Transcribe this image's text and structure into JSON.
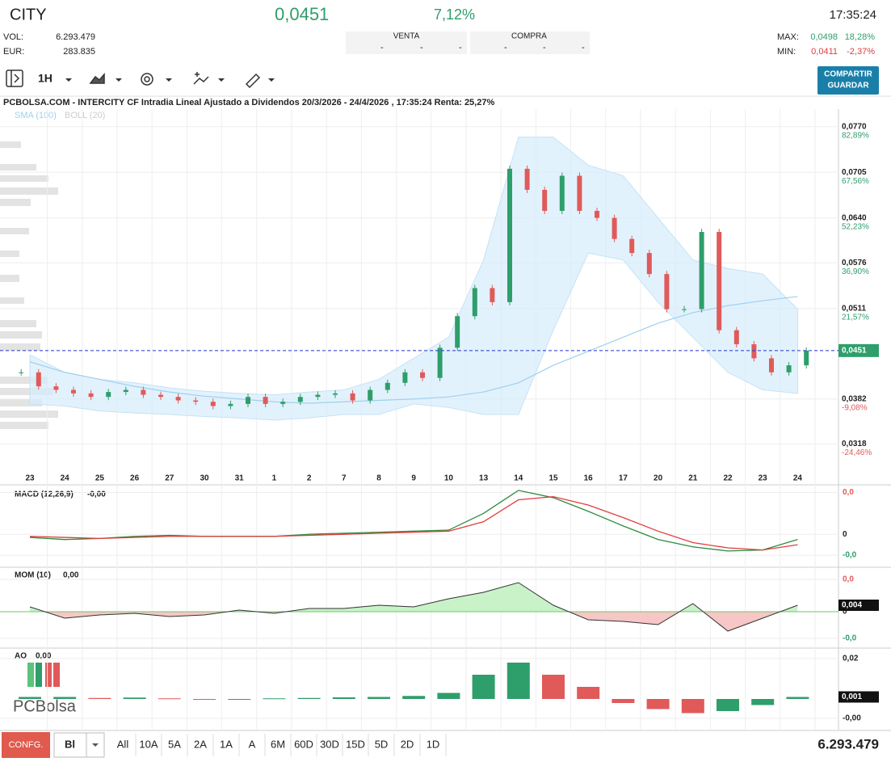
{
  "header": {
    "ticker": "CITY",
    "price": "0,0451",
    "change": "7,12%",
    "time": "17:35:24",
    "vol_label": "VOL:",
    "vol": "6.293.479",
    "eur_label": "EUR:",
    "eur": "283.835",
    "venta": "VENTA",
    "compra": "COMPRA",
    "dash": "-",
    "max_label": "MAX:",
    "max": "0,0498",
    "max_pct": "18,28%",
    "min_label": "MIN:",
    "min": "0,0411",
    "min_pct": "-2,37%"
  },
  "toolbar": {
    "interval": "1H",
    "share": "COMPARTIR",
    "save": "GUARDAR"
  },
  "price_chart": {
    "type": "candlestick",
    "title": "PCBOLSA.COM - INTERCITY CF Intradia Lineal Ajustado a Dividendos 20/3/2026 - 24/4/2026 , 17:35:24 Renta: 25,27%",
    "legend": [
      "SMA (100)",
      "BOLL (20)"
    ],
    "dates": [
      "23",
      "24",
      "25",
      "26",
      "27",
      "30",
      "31",
      "1",
      "2",
      "7",
      "8",
      "9",
      "10",
      "13",
      "14",
      "15",
      "16",
      "17",
      "20",
      "21",
      "22",
      "23",
      "24"
    ],
    "close": [
      0.042,
      0.04,
      0.0395,
      0.039,
      0.0385,
      0.0392,
      0.0395,
      0.0388,
      0.0385,
      0.038,
      0.0378,
      0.0372,
      0.0375,
      0.0385,
      0.0375,
      0.0378,
      0.0385,
      0.0388,
      0.039,
      0.038,
      0.0395,
      0.0405,
      0.042,
      0.0412,
      0.0455,
      0.05,
      0.054,
      0.052,
      0.071,
      0.068,
      0.065,
      0.07,
      0.065,
      0.064,
      0.061,
      0.059,
      0.056,
      0.051,
      0.051,
      0.062,
      0.048,
      0.046,
      0.044,
      0.042,
      0.043,
      0.0451
    ],
    "boll_upper": [
      0.0445,
      0.042,
      0.041,
      0.0405,
      0.0398,
      0.0393,
      0.039,
      0.0388,
      0.0392,
      0.0395,
      0.041,
      0.044,
      0.047,
      0.058,
      0.0755,
      0.0755,
      0.0715,
      0.07,
      0.064,
      0.058,
      0.0568,
      0.056,
      0.051
    ],
    "boll_lower": [
      0.0375,
      0.0372,
      0.0365,
      0.0362,
      0.036,
      0.0357,
      0.0355,
      0.0352,
      0.0355,
      0.036,
      0.036,
      0.0375,
      0.037,
      0.036,
      0.036,
      0.048,
      0.059,
      0.058,
      0.052,
      0.047,
      0.042,
      0.0395,
      0.039
    ],
    "sma": [
      0.0435,
      0.042,
      0.041,
      0.04,
      0.0392,
      0.0386,
      0.0382,
      0.0378,
      0.0376,
      0.0378,
      0.038,
      0.0382,
      0.0385,
      0.0392,
      0.0405,
      0.043,
      0.045,
      0.047,
      0.049,
      0.0505,
      0.0515,
      0.0522,
      0.0528
    ],
    "ylim": [
      0.0277,
      0.0795
    ],
    "yticks": [
      {
        "value": 0.077,
        "label": "0,0770",
        "pct": "82,89%"
      },
      {
        "value": 0.0705,
        "label": "0,0705",
        "pct": "67,56%"
      },
      {
        "value": 0.064,
        "label": "0,0640",
        "pct": "52,23%"
      },
      {
        "value": 0.0576,
        "label": "0,0576",
        "pct": "36,90%"
      },
      {
        "value": 0.0511,
        "label": "0,0511",
        "pct": "21,57%"
      },
      {
        "value": 0.0382,
        "label": "0,0382",
        "pct": "-9,08%"
      },
      {
        "value": 0.0318,
        "label": "0,0318",
        "pct": "-24,46%"
      }
    ],
    "current": {
      "value": 0.0451,
      "label": "0,0451"
    }
  },
  "macd": {
    "type": "line",
    "title": "MACD (12,26,9)",
    "reading": "-0,00",
    "series": [
      {
        "name": "MACD",
        "color": "#2e8b3e",
        "values": [
          -0.0003,
          -0.0005,
          -0.0004,
          -0.0002,
          -0.0001,
          -0.0002,
          -0.0002,
          -0.0002,
          0.0,
          0.0001,
          0.0002,
          0.0003,
          0.0004,
          0.002,
          0.0042,
          0.0035,
          0.0022,
          0.0008,
          -0.0005,
          -0.0012,
          -0.0016,
          -0.0015,
          -0.0005
        ]
      },
      {
        "name": "Signal",
        "color": "#e03c3c",
        "values": [
          -0.0002,
          -0.0003,
          -0.0004,
          -0.0003,
          -0.0002,
          -0.0002,
          -0.0002,
          -0.0002,
          -0.0001,
          0.0,
          0.0001,
          0.0002,
          0.0003,
          0.0012,
          0.0033,
          0.0036,
          0.0028,
          0.0016,
          0.0003,
          -0.0008,
          -0.0013,
          -0.0015,
          -0.001
        ]
      }
    ],
    "ylim": [
      -0.003,
      0.0045
    ],
    "yticks": [
      {
        "value": 0.004,
        "label": "0,0"
      },
      0,
      {
        "value": -0.002,
        "label": "-0,0"
      }
    ]
  },
  "mom": {
    "type": "area",
    "title": "MOM (10)",
    "reading": "0,00",
    "values": [
      0.003,
      -0.004,
      -0.002,
      -0.001,
      -0.003,
      -0.002,
      0.001,
      -0.001,
      0.002,
      0.002,
      0.004,
      0.003,
      0.008,
      0.012,
      0.018,
      0.004,
      -0.005,
      -0.006,
      -0.008,
      0.005,
      -0.012,
      -0.004,
      0.004
    ],
    "value_labels": [
      null,
      null,
      null,
      null,
      null,
      null,
      null,
      null,
      null,
      null,
      null,
      null,
      null,
      null,
      null,
      null,
      null,
      null,
      null,
      null,
      null,
      null,
      "0,004"
    ],
    "ylim": [
      -0.0215,
      0.027
    ],
    "yticks": [
      {
        "value": 0.02,
        "label": "0,0"
      },
      0,
      {
        "value": -0.0165,
        "label": "-0,0"
      }
    ]
  },
  "ao": {
    "type": "bar",
    "title": "AO",
    "reading": "0,00",
    "logo": "PCBolsa",
    "values": [
      0.001,
      0.001,
      0.0005,
      0.0007,
      0.0003,
      -0.0002,
      0.0,
      0.0003,
      0.0005,
      0.0008,
      0.001,
      0.0015,
      0.003,
      0.012,
      0.018,
      0.012,
      0.006,
      -0.002,
      -0.005,
      -0.007,
      -0.006,
      -0.003,
      0.001
    ],
    "value_labels": [
      null,
      null,
      null,
      null,
      null,
      null,
      null,
      null,
      null,
      null,
      null,
      null,
      null,
      null,
      null,
      null,
      null,
      null,
      null,
      null,
      null,
      null,
      "0,001"
    ],
    "ylim": [
      -0.0152,
      0.0248
    ],
    "yticks": [
      {
        "value": 0.02,
        "label": "0,02"
      },
      {
        "value": -0.0096,
        "label": "-0,00"
      }
    ]
  },
  "footer": {
    "config": "CONFG.",
    "mode": "Bl",
    "ranges": [
      "All",
      "10A",
      "5A",
      "2A",
      "1A",
      "A",
      "6M",
      "60D",
      "30D",
      "15D",
      "5D",
      "2D",
      "1D"
    ],
    "volume": "6.293.479"
  }
}
